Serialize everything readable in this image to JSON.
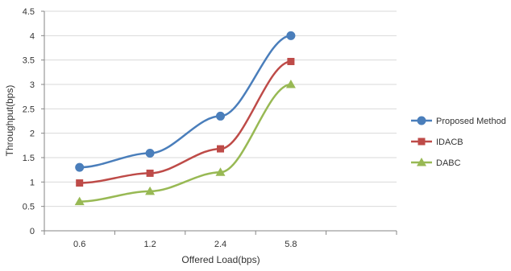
{
  "chart_data": {
    "type": "line",
    "xlabel": "Offered Load(bps)",
    "ylabel": "Throughput(bps)",
    "categories": [
      "0.6",
      "1.2",
      "2.4",
      "5.8"
    ],
    "ylim": [
      0,
      4.5
    ],
    "yticks": [
      "0",
      "0.5",
      "1",
      "1.5",
      "2",
      "2.5",
      "3",
      "3.5",
      "4",
      "4.5"
    ],
    "grid": "horizontal",
    "legend_position": "right",
    "series": [
      {
        "name": "Proposed Method",
        "values": [
          1.3,
          1.59,
          2.35,
          4.0
        ],
        "color": "#4a7ebb",
        "marker": "circle"
      },
      {
        "name": "IDACB",
        "values": [
          0.98,
          1.18,
          1.68,
          3.47
        ],
        "color": "#be4b48",
        "marker": "square"
      },
      {
        "name": "DABC",
        "values": [
          0.6,
          0.81,
          1.2,
          3.0
        ],
        "color": "#98b954",
        "marker": "triangle"
      }
    ]
  }
}
